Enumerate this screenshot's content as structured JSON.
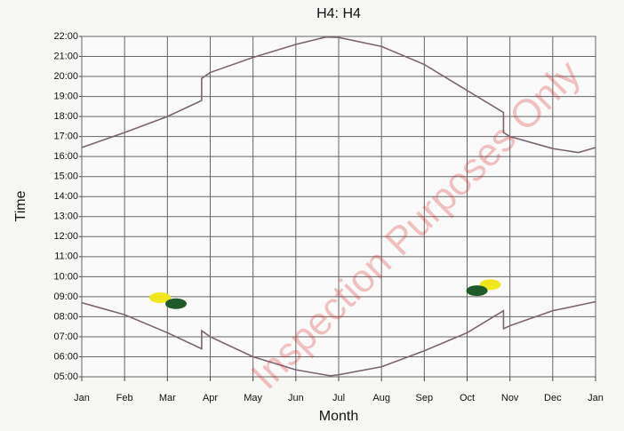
{
  "chart_data": {
    "type": "line",
    "title": "H4: H4",
    "xlabel": "Month",
    "ylabel": "Time",
    "annotation": "Inspection Purposes Only",
    "xlim": [
      0,
      12
    ],
    "xticks": [
      {
        "value": 0,
        "label": "Jan"
      },
      {
        "value": 1,
        "label": "Feb"
      },
      {
        "value": 2,
        "label": "Mar"
      },
      {
        "value": 3,
        "label": "Apr"
      },
      {
        "value": 4,
        "label": "May"
      },
      {
        "value": 5,
        "label": "Jun"
      },
      {
        "value": 6,
        "label": "Jul"
      },
      {
        "value": 7,
        "label": "Aug"
      },
      {
        "value": 8,
        "label": "Sep"
      },
      {
        "value": 9,
        "label": "Oct"
      },
      {
        "value": 10,
        "label": "Nov"
      },
      {
        "value": 11,
        "label": "Dec"
      },
      {
        "value": 12,
        "label": "Jan"
      }
    ],
    "ylim": [
      5,
      22
    ],
    "yticks": [
      {
        "value": 5,
        "label": "05:00"
      },
      {
        "value": 6,
        "label": "06:00"
      },
      {
        "value": 7,
        "label": "07:00"
      },
      {
        "value": 8,
        "label": "08:00"
      },
      {
        "value": 9,
        "label": "09:00"
      },
      {
        "value": 10,
        "label": "10:00"
      },
      {
        "value": 11,
        "label": "11:00"
      },
      {
        "value": 12,
        "label": "12:00"
      },
      {
        "value": 13,
        "label": "13:00"
      },
      {
        "value": 14,
        "label": "14:00"
      },
      {
        "value": 15,
        "label": "15:00"
      },
      {
        "value": 16,
        "label": "16:00"
      },
      {
        "value": 17,
        "label": "17:00"
      },
      {
        "value": 18,
        "label": "18:00"
      },
      {
        "value": 19,
        "label": "19:00"
      },
      {
        "value": 20,
        "label": "20:00"
      },
      {
        "value": 21,
        "label": "21:00"
      },
      {
        "value": 22,
        "label": "22:00"
      }
    ],
    "grid": true,
    "lines": [
      {
        "color": "#7a6470",
        "x": [
          0,
          1,
          2,
          2.8,
          2.8,
          3,
          4,
          5,
          5.7,
          6,
          7,
          8,
          9,
          9.85,
          9.85,
          10,
          11,
          11.6,
          12
        ],
        "y": [
          16.45,
          17.2,
          18.0,
          18.8,
          19.9,
          20.2,
          20.95,
          21.6,
          21.97,
          21.95,
          21.5,
          20.6,
          19.3,
          18.2,
          17.2,
          17.0,
          16.4,
          16.2,
          16.45
        ]
      },
      {
        "color": "#7a6470",
        "x": [
          0,
          1,
          2,
          2.8,
          2.8,
          3,
          4,
          5,
          5.8,
          6,
          7,
          8,
          9,
          9.85,
          9.85,
          10,
          11,
          12
        ],
        "y": [
          8.7,
          8.1,
          7.2,
          6.4,
          7.3,
          7.0,
          6.0,
          5.35,
          5.05,
          5.1,
          5.5,
          6.3,
          7.2,
          8.3,
          7.4,
          7.55,
          8.3,
          8.75
        ]
      }
    ],
    "blobs": [
      {
        "color": "#f0e81c",
        "x": [
          1.83,
          9.54
        ],
        "y": [
          8.95,
          9.6
        ]
      },
      {
        "color": "#1f5a2a",
        "x": [
          2.2,
          9.23
        ],
        "y": [
          8.65,
          9.3
        ]
      }
    ]
  }
}
